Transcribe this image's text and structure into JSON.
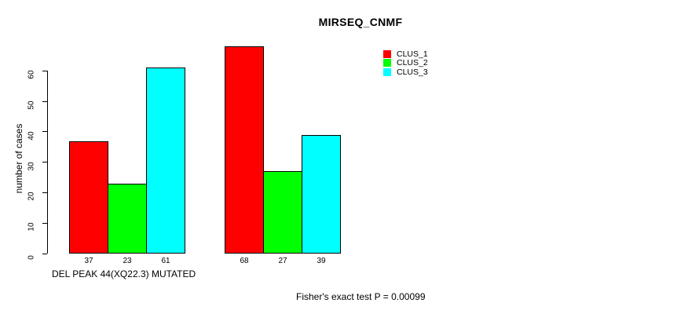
{
  "chart_data": {
    "type": "bar",
    "title": "MIRSEQ_CNMF",
    "ylabel": "number of cases",
    "xlabel": "DEL PEAK 44(XQ22.3) MUTATED",
    "ylim": [
      0,
      60
    ],
    "yticks": [
      0,
      10,
      20,
      30,
      40,
      50,
      60
    ],
    "grid": false,
    "legend_position": "top-right",
    "categories": [
      "DEL PEAK 44(XQ22.3) MUTATED",
      ""
    ],
    "series": [
      {
        "name": "CLUS_1",
        "color": "#FF0000",
        "values": [
          37,
          68
        ]
      },
      {
        "name": "CLUS_2",
        "color": "#00FF00",
        "values": [
          23,
          27
        ]
      },
      {
        "name": "CLUS_3",
        "color": "#00FFFF",
        "values": [
          61,
          39
        ]
      }
    ],
    "bar_value_labels": [
      [
        37,
        23,
        61
      ],
      [
        68,
        27,
        39
      ]
    ],
    "groups": [
      {
        "label": "DEL PEAK 44(XQ22.3) MUTATED"
      },
      {
        "label": ""
      }
    ],
    "annotation": "Fisher's exact test P = 0.00099"
  },
  "colors": {
    "background": "#FFFFFF",
    "axis": "#000000",
    "bar_border": "#000000",
    "clus_1": "#FF0000",
    "clus_2": "#00FF00",
    "clus_3": "#00FFFF"
  }
}
